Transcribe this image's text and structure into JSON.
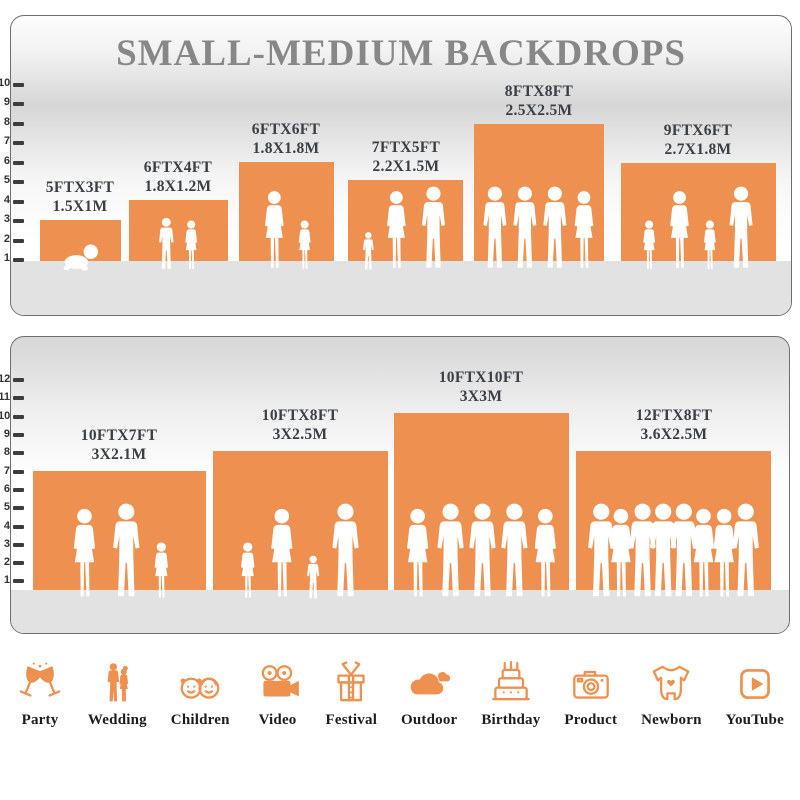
{
  "title": "SMALL-MEDIUM BACKDROPS",
  "colors": {
    "accent_orange": "#EE9150",
    "title_gray": "#878787",
    "label_dark": "#3A3F46",
    "floor_gray": "#E2E2E2",
    "silhouette_white": "#FFFFFF"
  },
  "top_panel": {
    "axis_ticks": [
      "10",
      "9",
      "8",
      "7",
      "6",
      "5",
      "4",
      "3",
      "2",
      "1"
    ],
    "boxes": [
      {
        "ft": "5FTX3FT",
        "m": "1.5X1M",
        "figures": [
          "baby"
        ]
      },
      {
        "ft": "6FTX4FT",
        "m": "1.8X1.2M",
        "figures": [
          "boy",
          "girl"
        ]
      },
      {
        "ft": "6FTX6FT",
        "m": "1.8X1.8M",
        "figures": [
          "woman",
          "girl"
        ]
      },
      {
        "ft": "7FTX5FT",
        "m": "2.2X1.5M",
        "figures": [
          "toddler",
          "woman",
          "man"
        ]
      },
      {
        "ft": "8FTX8FT",
        "m": "2.5X2.5M",
        "figures": [
          "man",
          "man",
          "man",
          "woman"
        ]
      },
      {
        "ft": "9FTX6FT",
        "m": "2.7X1.8M",
        "figures": [
          "girl",
          "woman",
          "girl",
          "man"
        ]
      }
    ]
  },
  "bottom_panel": {
    "axis_ticks": [
      "12",
      "11",
      "10",
      "9",
      "8",
      "7",
      "6",
      "5",
      "4",
      "3",
      "2",
      "1"
    ],
    "boxes": [
      {
        "ft": "10FTX7FT",
        "m": "3X2.1M",
        "figures": [
          "woman",
          "man",
          "girl"
        ]
      },
      {
        "ft": "10FTX8FT",
        "m": "3X2.5M",
        "figures": [
          "girl",
          "woman",
          "toddler",
          "man"
        ]
      },
      {
        "ft": "10FTX10FT",
        "m": "3X3M",
        "figures": [
          "woman",
          "man",
          "man",
          "man",
          "woman"
        ]
      },
      {
        "ft": "12FTX8FT",
        "m": "3.6X2.5M",
        "figures": [
          "man",
          "woman",
          "man",
          "man",
          "man",
          "woman",
          "woman",
          "man"
        ]
      }
    ]
  },
  "categories": [
    {
      "label": "Party",
      "icon": "party-icon"
    },
    {
      "label": "Wedding",
      "icon": "wedding-icon"
    },
    {
      "label": "Children",
      "icon": "children-icon"
    },
    {
      "label": "Video",
      "icon": "video-icon"
    },
    {
      "label": "Festival",
      "icon": "festival-icon"
    },
    {
      "label": "Outdoor",
      "icon": "outdoor-icon"
    },
    {
      "label": "Birthday",
      "icon": "birthday-icon"
    },
    {
      "label": "Product",
      "icon": "product-icon"
    },
    {
      "label": "Newborn",
      "icon": "newborn-icon"
    },
    {
      "label": "YouTube",
      "icon": "youtube-icon"
    }
  ]
}
